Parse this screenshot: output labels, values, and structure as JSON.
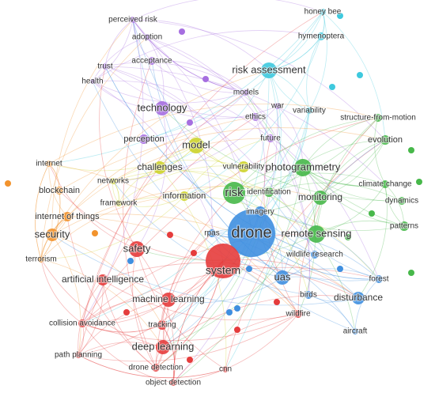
{
  "nodes": [
    {
      "label": "perceived risk"
    },
    {
      "label": "adoption"
    },
    {
      "label": "trust"
    },
    {
      "label": "acceptance"
    },
    {
      "label": "health"
    },
    {
      "label": "technology"
    },
    {
      "label": "models"
    },
    {
      "label": "perception"
    },
    {
      "label": "war"
    },
    {
      "label": "ethics"
    },
    {
      "label": "future"
    },
    {
      "label": "honey bee"
    },
    {
      "label": "hymenoptera"
    },
    {
      "label": "risk assessment"
    },
    {
      "label": "variability"
    },
    {
      "label": "structure-from-motion"
    },
    {
      "label": "evolution"
    },
    {
      "label": "photogrammetry"
    },
    {
      "label": "climate change"
    },
    {
      "label": "monitoring"
    },
    {
      "label": "dynamics"
    },
    {
      "label": "patterns"
    },
    {
      "label": "remote sensing"
    },
    {
      "label": "risk"
    },
    {
      "label": "identification"
    },
    {
      "label": "model"
    },
    {
      "label": "challenges"
    },
    {
      "label": "vulnerability"
    },
    {
      "label": "networks"
    },
    {
      "label": "framework"
    },
    {
      "label": "information"
    },
    {
      "label": "imagery"
    },
    {
      "label": "internet"
    },
    {
      "label": "blockchain"
    },
    {
      "label": "internet of things"
    },
    {
      "label": "security"
    },
    {
      "label": "terrorism"
    },
    {
      "label": "drone"
    },
    {
      "label": "rpas"
    },
    {
      "label": "wildlife research"
    },
    {
      "label": "uas"
    },
    {
      "label": "forest"
    },
    {
      "label": "birds"
    },
    {
      "label": "disturbance"
    },
    {
      "label": "aircraft"
    },
    {
      "label": "safety"
    },
    {
      "label": "system"
    },
    {
      "label": "artificial intelligence"
    },
    {
      "label": "machine learning"
    },
    {
      "label": "collision avoidance"
    },
    {
      "label": "tracking"
    },
    {
      "label": "wildfire"
    },
    {
      "label": "deep learning"
    },
    {
      "label": "path planning"
    },
    {
      "label": "drone detection"
    },
    {
      "label": "cnn"
    },
    {
      "label": "object detection"
    }
  ]
}
